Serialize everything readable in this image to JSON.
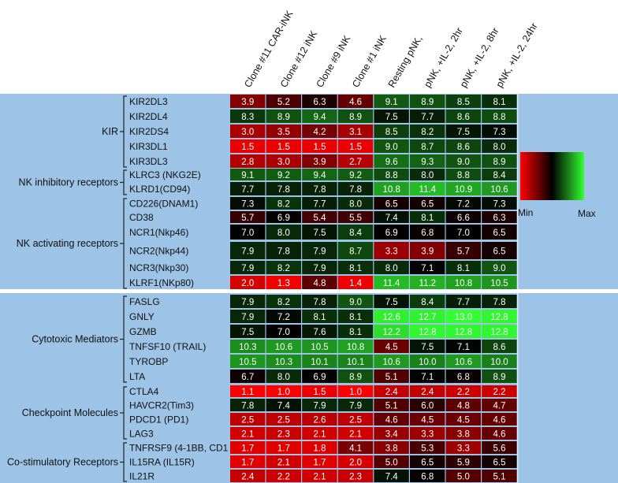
{
  "chart_data": {
    "type": "heatmap",
    "columns": [
      "Clone #11 CAR-iNK",
      "Clone #12 iNK",
      "Clone #9 iNK",
      "Clone #1 iNK",
      "Resting pNK,",
      "pNK, +IL-2, 2hr",
      "pNK, +IL-2, 8hr",
      "pNK, +IL-2, 24hr"
    ],
    "legend": {
      "min_label": "Min",
      "max_label": "Max",
      "low_color": "#ff0000",
      "mid_color": "#000000",
      "high_color": "#33ff33"
    },
    "panels": [
      {
        "groups": [
          {
            "label": "KIR",
            "rows": [
              0,
              4
            ]
          },
          {
            "label": "NK inhibitory receptors",
            "rows": [
              5,
              6
            ]
          },
          {
            "label": "NK activating receptors",
            "rows": [
              7,
              12
            ]
          }
        ],
        "rows": [
          {
            "gene": "KIR2DL3",
            "values": [
              3.9,
              5.2,
              6.3,
              4.6,
              9.1,
              8.9,
              8.5,
              8.1
            ]
          },
          {
            "gene": "KIR2DL4",
            "values": [
              8.3,
              8.9,
              9.4,
              8.9,
              7.5,
              7.7,
              8.6,
              8.8
            ]
          },
          {
            "gene": "KIR2DS4",
            "values": [
              3.0,
              3.5,
              4.2,
              3.1,
              8.5,
              8.2,
              7.5,
              7.3
            ]
          },
          {
            "gene": "KIR3DL1",
            "values": [
              1.5,
              1.5,
              1.5,
              1.5,
              9.0,
              8.7,
              8.6,
              8.0
            ]
          },
          {
            "gene": "KIR3DL3",
            "values": [
              2.8,
              3.0,
              3.9,
              2.7,
              9.6,
              9.3,
              9.0,
              8.9
            ]
          },
          {
            "gene": "KLRC3 (NKG2E)",
            "values": [
              9.1,
              9.2,
              9.4,
              9.2,
              8.8,
              8.0,
              8.8,
              8.4
            ]
          },
          {
            "gene": "KLRD1(CD94)",
            "values": [
              7.7,
              7.8,
              7.8,
              7.8,
              10.8,
              11.4,
              10.9,
              10.6
            ]
          },
          {
            "gene": "CD226(DNAM1)",
            "values": [
              7.3,
              8.2,
              7.7,
              8.0,
              6.5,
              6.5,
              7.2,
              7.3
            ]
          },
          {
            "gene": "CD38",
            "values": [
              5.7,
              6.9,
              5.4,
              5.5,
              7.4,
              8.1,
              6.6,
              6.3
            ]
          },
          {
            "gene": "NCR1(Nkp46)",
            "values": [
              7.0,
              8.0,
              7.5,
              8.4,
              6.9,
              6.8,
              7.0,
              6.5
            ]
          },
          {
            "gene": "NCR2(Nkp44)",
            "values": [
              7.9,
              7.8,
              7.9,
              8.7,
              3.3,
              3.9,
              5.7,
              6.5
            ]
          },
          {
            "gene": "NCR3(Nkp30)",
            "values": [
              7.9,
              8.2,
              7.9,
              8.1,
              8.0,
              7.1,
              8.1,
              9.0
            ]
          },
          {
            "gene": "KLRF1(NKp80)",
            "values": [
              2.0,
              1.3,
              4.8,
              1.4,
              11.4,
              11.2,
              10.8,
              10.5
            ]
          }
        ]
      },
      {
        "groups": [
          {
            "label": "Cytotoxic Mediators",
            "rows": [
              0,
              5
            ]
          },
          {
            "label": "Checkpoint Molecules",
            "rows": [
              6,
              9
            ]
          },
          {
            "label": "Co-stimulatory Receptors",
            "rows": [
              10,
              12
            ]
          }
        ],
        "rows": [
          {
            "gene": "FASLG",
            "values": [
              7.9,
              8.2,
              7.8,
              9.0,
              7.5,
              8.4,
              7.7,
              7.8
            ]
          },
          {
            "gene": "GNLY",
            "values": [
              7.9,
              7.2,
              8.1,
              8.1,
              12.6,
              12.7,
              13.0,
              12.8
            ]
          },
          {
            "gene": "GZMB",
            "values": [
              7.5,
              7.0,
              7.6,
              8.1,
              12.2,
              12.8,
              12.8,
              12.8
            ]
          },
          {
            "gene": "TNFSF10 (TRAIL)",
            "values": [
              10.3,
              10.6,
              10.5,
              10.8,
              4.5,
              7.5,
              7.1,
              8.6
            ]
          },
          {
            "gene": "TYROBP",
            "values": [
              10.5,
              10.3,
              10.1,
              10.1,
              10.6,
              10.0,
              10.6,
              10.0
            ]
          },
          {
            "gene": "LTA",
            "values": [
              6.7,
              8.0,
              6.9,
              8.9,
              5.1,
              7.1,
              6.8,
              8.9
            ]
          },
          {
            "gene": "CTLA4",
            "values": [
              1.1,
              1.0,
              1.5,
              1.0,
              2.4,
              2.4,
              2.2,
              2.2
            ]
          },
          {
            "gene": "HAVCR2(Tim3)",
            "values": [
              7.8,
              7.4,
              7.9,
              7.9,
              5.1,
              6.0,
              4.8,
              4.7
            ]
          },
          {
            "gene": "PDCD1 (PD1)",
            "values": [
              2.5,
              2.5,
              2.6,
              2.5,
              4.6,
              4.5,
              4.5,
              4.6
            ]
          },
          {
            "gene": "LAG3",
            "values": [
              2.1,
              2.3,
              2.1,
              2.1,
              3.4,
              3.3,
              3.8,
              4.6
            ]
          },
          {
            "gene": "TNFRSF9 (4-1BB, CD1",
            "values": [
              1.7,
              1.7,
              1.8,
              4.1,
              3.8,
              5.3,
              3.3,
              5.6
            ]
          },
          {
            "gene": "IL15RA (IL15R)",
            "values": [
              1.7,
              2.1,
              1.7,
              2.0,
              5.0,
              6.5,
              5.9,
              6.5
            ]
          },
          {
            "gene": "IL21R",
            "values": [
              2.4,
              2.2,
              2.1,
              2.3,
              7.4,
              6.8,
              5.0,
              5.1
            ]
          }
        ]
      }
    ]
  }
}
